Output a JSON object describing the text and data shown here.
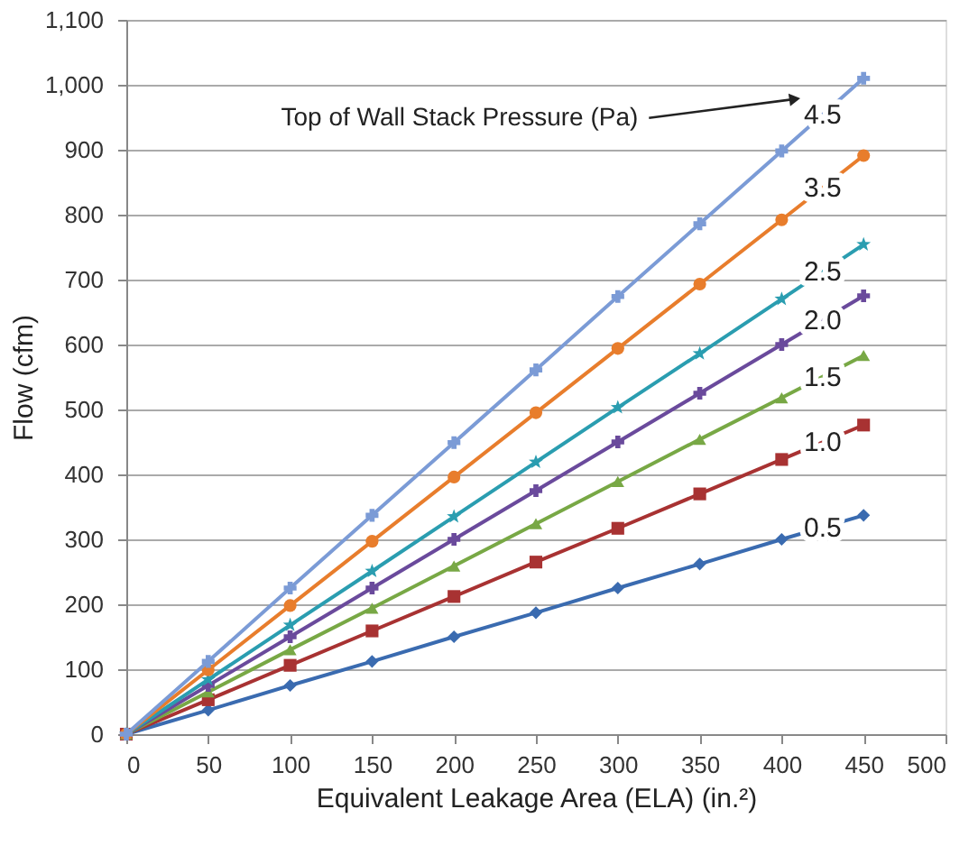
{
  "chart_data": {
    "type": "line",
    "xlabel": "Equivalent Leakage Area (ELA) (in.²)",
    "ylabel": "Flow (cfm)",
    "x": [
      0,
      50,
      100,
      150,
      200,
      250,
      300,
      350,
      400,
      450
    ],
    "series": [
      {
        "name": "0.5",
        "color": "#3a6bb0",
        "marker": "diamond",
        "values": [
          0,
          37,
          75,
          112,
          150,
          187,
          225,
          262,
          300,
          337
        ]
      },
      {
        "name": "1.0",
        "color": "#a83232",
        "marker": "square",
        "values": [
          0,
          53,
          106,
          159,
          212,
          265,
          317,
          370,
          423,
          476
        ]
      },
      {
        "name": "1.5",
        "color": "#78a845",
        "marker": "triangle",
        "values": [
          0,
          65,
          130,
          194,
          259,
          324,
          389,
          454,
          518,
          583
        ]
      },
      {
        "name": "2.0",
        "color": "#6a4a9c",
        "marker": "cross",
        "values": [
          0,
          75,
          150,
          225,
          300,
          375,
          450,
          525,
          600,
          675
        ]
      },
      {
        "name": "2.5",
        "color": "#2a9db0",
        "marker": "star",
        "values": [
          0,
          84,
          168,
          251,
          335,
          419,
          503,
          586,
          670,
          754
        ]
      },
      {
        "name": "3.5",
        "color": "#e87d2c",
        "marker": "circle",
        "values": [
          0,
          99,
          198,
          297,
          396,
          495,
          594,
          693,
          792,
          891
        ]
      },
      {
        "name": "4.5",
        "color": "#7b9bd6",
        "marker": "cross",
        "values": [
          0,
          112,
          225,
          337,
          449,
          561,
          674,
          786,
          898,
          1010
        ]
      }
    ],
    "annotations": [
      {
        "text": "Top of Wall Stack Pressure (Pa)",
        "x": 408,
        "y": 978
      }
    ],
    "xlim": [
      0,
      500
    ],
    "xticks": [
      0,
      50,
      100,
      150,
      200,
      250,
      300,
      350,
      400,
      450,
      500
    ],
    "ylim": [
      0,
      1100
    ],
    "yticks": [
      0,
      100,
      200,
      300,
      400,
      500,
      600,
      700,
      800,
      900,
      {
        "value": 1000,
        "label": "1,000"
      },
      {
        "value": 1100,
        "label": "1,100"
      }
    ],
    "grid": "y",
    "line_style": "solid"
  }
}
